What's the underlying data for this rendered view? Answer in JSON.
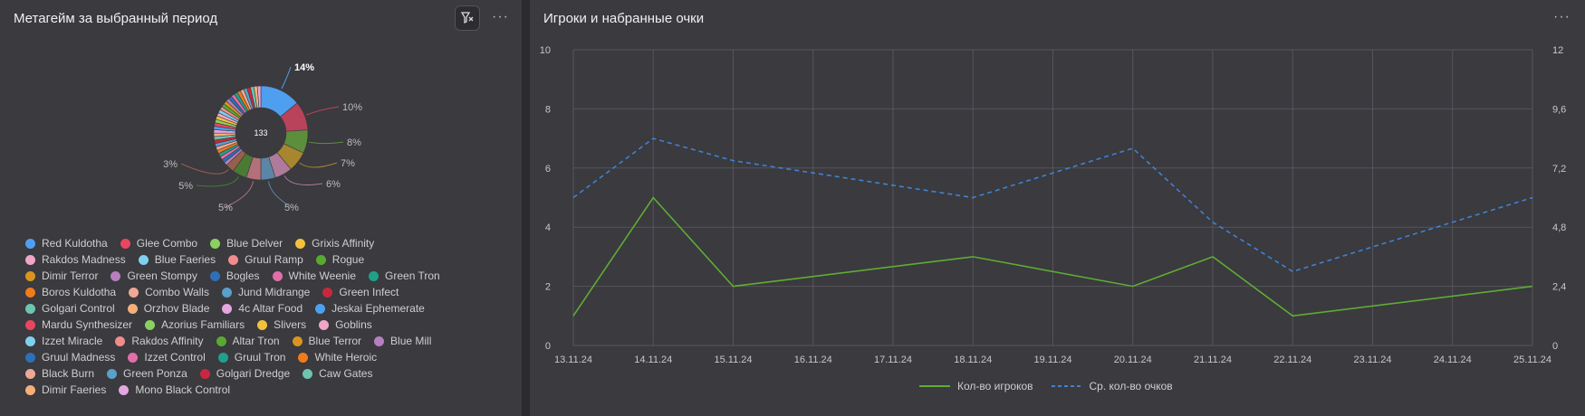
{
  "left": {
    "title": "Метагейм за выбранный период",
    "more": "···",
    "donut_center": "133",
    "slices": [
      {
        "label": "14%",
        "value": 14,
        "color": "#4f9ff0"
      },
      {
        "label": "10%",
        "value": 10,
        "color": "#b8435a"
      },
      {
        "label": "8%",
        "value": 8,
        "color": "#5c8e3c"
      },
      {
        "label": "7%",
        "value": 7,
        "color": "#a8852f"
      },
      {
        "label": "6%",
        "value": 6,
        "color": "#b07a9a"
      },
      {
        "label": "5%",
        "value": 5,
        "color": "#5c86a6"
      },
      {
        "label": "5%",
        "value": 5,
        "color": "#b4707a"
      },
      {
        "label": "5%",
        "value": 5,
        "color": "#4a7a34"
      },
      {
        "label": "3%",
        "value": 3,
        "color": "#96604a"
      }
    ],
    "legend_rows": [
      [
        {
          "label": "Red Kuldotha",
          "color": "#4f9ff0"
        },
        {
          "label": "Glee Combo",
          "color": "#e8465f"
        },
        {
          "label": "Blue Delver",
          "color": "#8bd15f"
        },
        {
          "label": "Grixis Affinity",
          "color": "#f4c13c"
        }
      ],
      [
        {
          "label": "Rakdos Madness",
          "color": "#f0a6c8"
        },
        {
          "label": "Blue Faeries",
          "color": "#7fd0ef"
        },
        {
          "label": "Gruul Ramp",
          "color": "#f08c8c"
        },
        {
          "label": "Rogue",
          "color": "#59a930"
        }
      ],
      [
        {
          "label": "Dimir Terror",
          "color": "#d9941f"
        },
        {
          "label": "Green Stompy",
          "color": "#b57fc0"
        },
        {
          "label": "Bogles",
          "color": "#2e6fb8"
        },
        {
          "label": "White Weenie",
          "color": "#e06fa8"
        },
        {
          "label": "Green Tron",
          "color": "#1fa08a"
        }
      ],
      [
        {
          "label": "Boros Kuldotha",
          "color": "#f07b1b"
        },
        {
          "label": "Combo Walls",
          "color": "#f0a896"
        },
        {
          "label": "Jund Midrange",
          "color": "#5aa0c8"
        },
        {
          "label": "Green Infect",
          "color": "#c8283f"
        }
      ],
      [
        {
          "label": "Golgari Control",
          "color": "#6ec4b0"
        },
        {
          "label": "Orzhov Blade",
          "color": "#f4b07a"
        },
        {
          "label": "4c Altar Food",
          "color": "#e4a6e0"
        },
        {
          "label": "Jeskai Ephemerate",
          "color": "#4f9ff0"
        }
      ],
      [
        {
          "label": "Mardu Synthesizer",
          "color": "#e8465f"
        },
        {
          "label": "Azorius Familiars",
          "color": "#8bd15f"
        },
        {
          "label": "Slivers",
          "color": "#f4c13c"
        },
        {
          "label": "Goblins",
          "color": "#f0a6c8"
        }
      ],
      [
        {
          "label": "Izzet Miracle",
          "color": "#7fd0ef"
        },
        {
          "label": "Rakdos Affinity",
          "color": "#f08c8c"
        },
        {
          "label": "Altar Tron",
          "color": "#59a930"
        },
        {
          "label": "Blue Terror",
          "color": "#d9941f"
        },
        {
          "label": "Blue Mill",
          "color": "#b57fc0"
        }
      ],
      [
        {
          "label": "Gruul Madness",
          "color": "#2e6fb8"
        },
        {
          "label": "Izzet Control",
          "color": "#e06fa8"
        },
        {
          "label": "Gruul Tron",
          "color": "#1fa08a"
        },
        {
          "label": "White Heroic",
          "color": "#f07b1b"
        }
      ],
      [
        {
          "label": "Black Burn",
          "color": "#f0a896"
        },
        {
          "label": "Green Ponza",
          "color": "#5aa0c8"
        },
        {
          "label": "Golgari Dredge",
          "color": "#c8283f"
        },
        {
          "label": "Caw Gates",
          "color": "#6ec4b0"
        }
      ],
      [
        {
          "label": "Dimir Faeries",
          "color": "#f4b07a"
        },
        {
          "label": "Mono Black Control",
          "color": "#e4a6e0"
        }
      ]
    ]
  },
  "right": {
    "title": "Игроки и набранные очки",
    "more": "···",
    "legend": [
      {
        "label": "Кол-во игроков",
        "color": "#5fac34",
        "style": "solid"
      },
      {
        "label": "Ср. кол-во очков",
        "color": "#3f82d0",
        "style": "dashed"
      }
    ]
  },
  "chart_data": {
    "type": "line",
    "x": [
      "13.11.24",
      "14.11.24",
      "15.11.24",
      "16.11.24",
      "17.11.24",
      "18.11.24",
      "19.11.24",
      "20.11.24",
      "21.11.24",
      "22.11.24",
      "23.11.24",
      "24.11.24",
      "25.11.24"
    ],
    "y_left_ticks": [
      "0",
      "2",
      "4",
      "6",
      "8",
      "10"
    ],
    "y_right_ticks": [
      "0",
      "2,4",
      "4,8",
      "7,2",
      "9,6",
      "12"
    ],
    "ylim_left": [
      0,
      10
    ],
    "ylim_right": [
      0,
      12
    ],
    "grid": true,
    "legend_position": "bottom",
    "series": [
      {
        "name": "Кол-во игроков",
        "axis": "left",
        "color": "#5fac34",
        "points": [
          [
            "13.11.24",
            1
          ],
          [
            "14.11.24",
            5
          ],
          [
            "15.11.24",
            2
          ],
          [
            "18.11.24",
            3
          ],
          [
            "20.11.24",
            2
          ],
          [
            "21.11.24",
            3
          ],
          [
            "22.11.24",
            1
          ],
          [
            "25.11.24",
            2
          ]
        ]
      },
      {
        "name": "Ср. кол-во очков",
        "axis": "right",
        "color": "#3f82d0",
        "points": [
          [
            "13.11.24",
            6
          ],
          [
            "14.11.24",
            8.4
          ],
          [
            "15.11.24",
            7.5
          ],
          [
            "18.11.24",
            6
          ],
          [
            "20.11.24",
            8
          ],
          [
            "21.11.24",
            5
          ],
          [
            "22.11.24",
            3
          ],
          [
            "25.11.24",
            6
          ]
        ]
      }
    ]
  }
}
